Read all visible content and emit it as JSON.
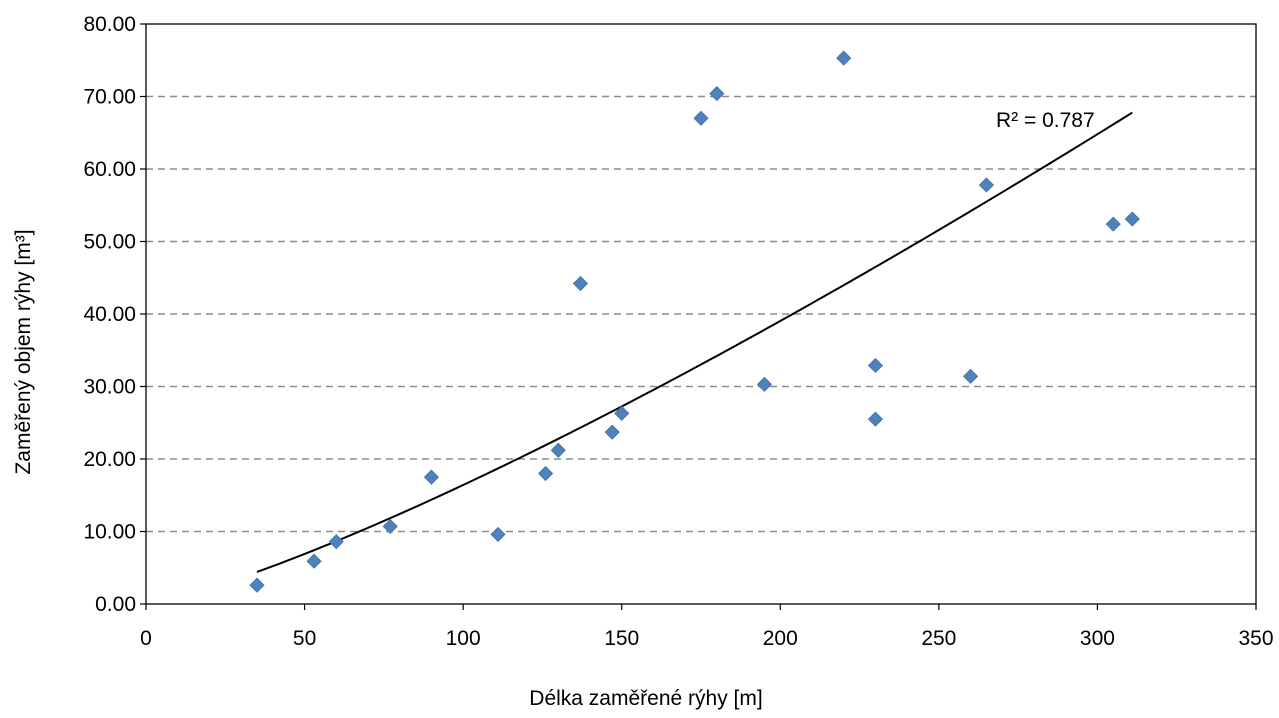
{
  "chart_data": {
    "type": "scatter",
    "title": "",
    "xlabel": "Délka zaměřené rýhy [m]",
    "ylabel": "Zaměřený objem rýhy [m³]",
    "xlim": [
      0,
      350
    ],
    "ylim": [
      0,
      80
    ],
    "x_ticks": [
      "0",
      "50",
      "100",
      "150",
      "200",
      "250",
      "300",
      "350"
    ],
    "y_ticks": [
      "0.00",
      "10.00",
      "20.00",
      "30.00",
      "40.00",
      "50.00",
      "60.00",
      "70.00",
      "80.00"
    ],
    "x_tick_values": [
      0,
      50,
      100,
      150,
      200,
      250,
      300,
      350
    ],
    "y_tick_values": [
      0,
      10,
      20,
      30,
      40,
      50,
      60,
      70,
      80
    ],
    "grid": "horizontal dashed",
    "marker": "diamond",
    "marker_color": "#4F81BD",
    "points": [
      {
        "x": 35,
        "y": 2.6
      },
      {
        "x": 53,
        "y": 5.9
      },
      {
        "x": 60,
        "y": 8.6
      },
      {
        "x": 77,
        "y": 10.7
      },
      {
        "x": 90,
        "y": 17.5
      },
      {
        "x": 111,
        "y": 9.6
      },
      {
        "x": 126,
        "y": 18.0
      },
      {
        "x": 130,
        "y": 21.2
      },
      {
        "x": 137,
        "y": 44.2
      },
      {
        "x": 147,
        "y": 23.7
      },
      {
        "x": 150,
        "y": 26.3
      },
      {
        "x": 175,
        "y": 67.0
      },
      {
        "x": 180,
        "y": 70.4
      },
      {
        "x": 195,
        "y": 30.3
      },
      {
        "x": 220,
        "y": 75.3
      },
      {
        "x": 230,
        "y": 32.9
      },
      {
        "x": 230,
        "y": 25.5
      },
      {
        "x": 260,
        "y": 31.4
      },
      {
        "x": 265,
        "y": 57.8
      },
      {
        "x": 305,
        "y": 52.4
      },
      {
        "x": 311,
        "y": 53.1
      }
    ],
    "trendline": {
      "type": "power",
      "coefficient": 0.0519,
      "exponent": 1.25,
      "x_range": [
        35,
        311
      ],
      "color": "#000000",
      "label": "R² = 0.787"
    }
  }
}
